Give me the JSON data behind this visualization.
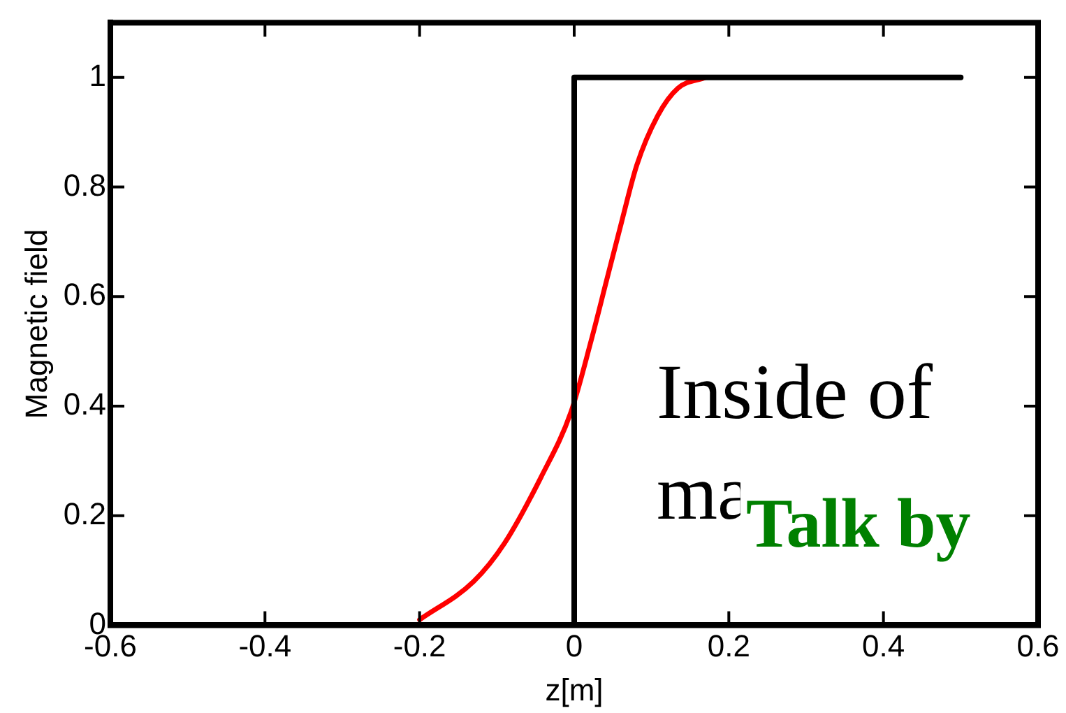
{
  "chart_data": {
    "type": "line",
    "xlabel": "z[m]",
    "ylabel": "Magnetic field",
    "xlim": [
      -0.6,
      0.6
    ],
    "xticks": [
      -0.6,
      -0.4,
      -0.2,
      0,
      0.2,
      0.4,
      0.6
    ],
    "ylim": [
      0,
      1.1
    ],
    "yticks": [
      0,
      0.2,
      0.4,
      0.6,
      0.8,
      1
    ],
    "grid": false,
    "legend": false,
    "marker": "none",
    "line_style": "solid",
    "series": [
      {
        "color": "#000000",
        "x": [
          0,
          0,
          0.5
        ],
        "values": [
          0,
          1,
          1
        ]
      },
      {
        "color": "#ff0000",
        "x": [
          -0.2,
          -0.13,
          -0.09,
          -0.043,
          -0.004,
          0.022,
          0.042,
          0.062,
          0.081,
          0.108,
          0.134,
          0.17
        ],
        "values": [
          0.01,
          0.08,
          0.15,
          0.27,
          0.39,
          0.52,
          0.63,
          0.74,
          0.84,
          0.93,
          0.98,
          1
        ]
      }
    ],
    "annotations": [
      "Inside of\nma",
      "Talk by"
    ]
  }
}
